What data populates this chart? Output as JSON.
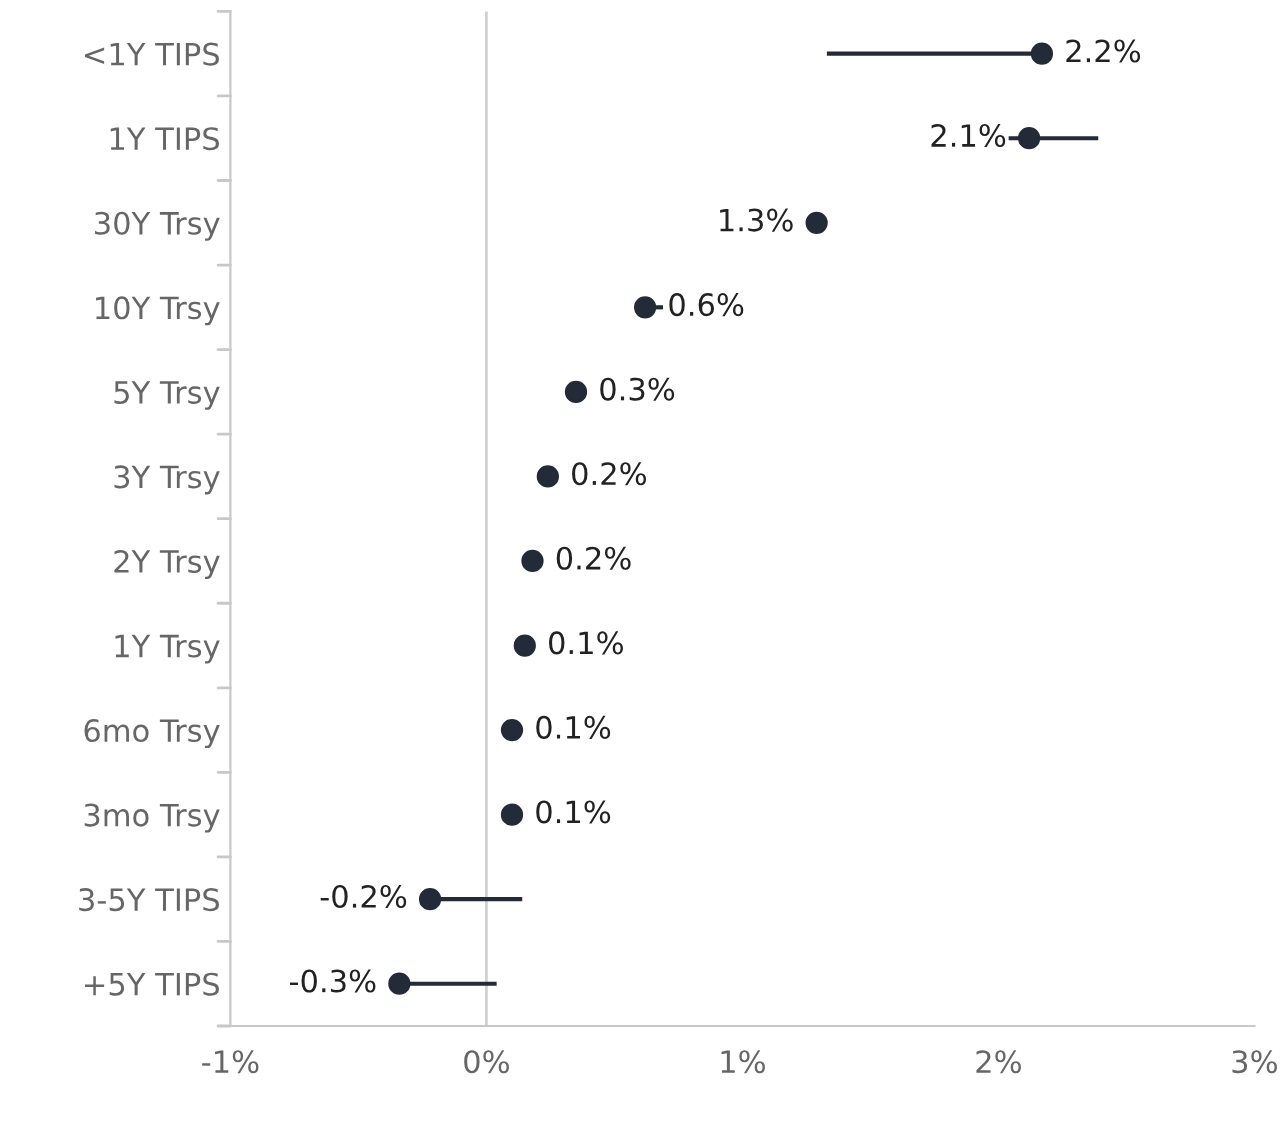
{
  "chart_data": {
    "type": "scatter",
    "orientation": "horizontal",
    "categories": [
      "<1Y TIPS",
      "1Y TIPS",
      "30Y Trsy",
      "10Y Trsy",
      "5Y Trsy",
      "3Y Trsy",
      "2Y Trsy",
      "1Y Trsy",
      "6mo Trsy",
      "3mo Trsy",
      "3-5Y TIPS",
      "+5Y TIPS"
    ],
    "values": [
      2.17,
      2.12,
      1.29,
      0.62,
      0.35,
      0.24,
      0.18,
      0.15,
      0.1,
      0.1,
      -0.22,
      -0.34
    ],
    "errors": [
      [
        1.33,
        2.17
      ],
      [
        2.04,
        2.39
      ],
      null,
      [
        0.62,
        0.69
      ],
      null,
      null,
      null,
      null,
      null,
      null,
      [
        -0.22,
        0.14
      ],
      [
        -0.34,
        0.04
      ]
    ],
    "value_labels": [
      "2.2%",
      "2.1%",
      "1.3%",
      "0.6%",
      "0.3%",
      "0.2%",
      "0.2%",
      "0.1%",
      "0.1%",
      "0.1%",
      "-0.2%",
      "-0.3%"
    ],
    "color": "#232b38",
    "marker": "circle",
    "xlim": [
      -1,
      3
    ],
    "xticks": [
      {
        "value": -1,
        "label": "-1%"
      },
      {
        "value": 0,
        "label": "0%"
      },
      {
        "value": 1,
        "label": "1%"
      },
      {
        "value": 2,
        "label": "2%"
      },
      {
        "value": 3,
        "label": "3%"
      }
    ],
    "ref_lines": [
      {
        "axis": "x",
        "value": 0,
        "color": "#d0d0d0"
      }
    ],
    "grid": false
  }
}
